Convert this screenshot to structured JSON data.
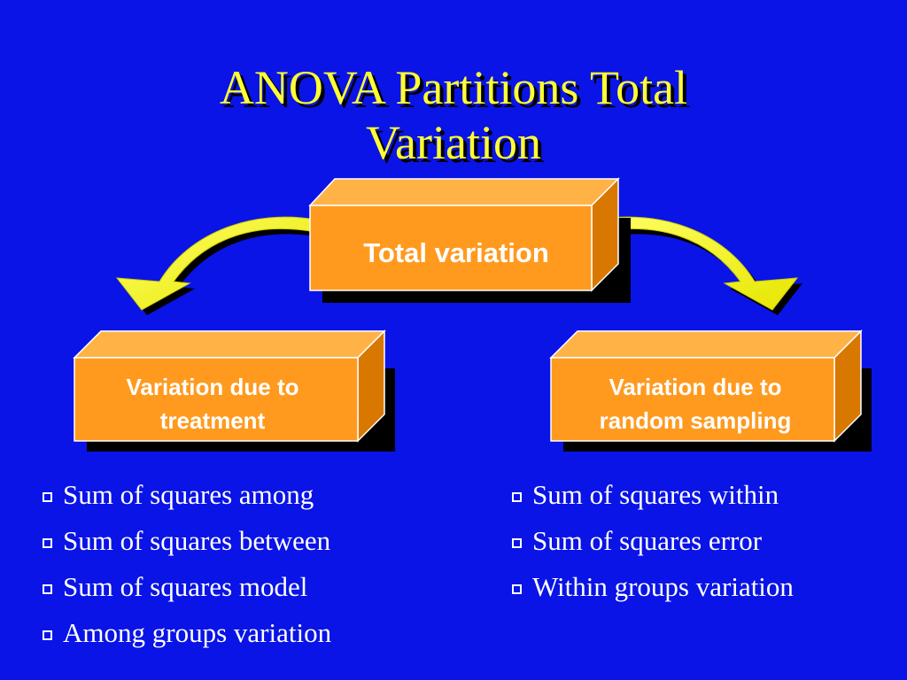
{
  "title": {
    "line1": "ANOVA Partitions Total",
    "line2": "Variation"
  },
  "diagram": {
    "total_box": "Total variation",
    "left_box": {
      "line1": "Variation due to",
      "line2": "treatment"
    },
    "right_box": {
      "line1": "Variation due to",
      "line2": "random sampling"
    }
  },
  "left_bullets": [
    "Sum of squares among",
    "Sum of squares between",
    "Sum of squares model",
    "Among groups variation"
  ],
  "right_bullets": [
    "Sum of squares within",
    "Sum of squares error",
    "Within groups variation"
  ],
  "colors": {
    "background": "#0a14e6",
    "title": "#ffff33",
    "box_front": "#ff9a1f",
    "box_top": "#ffb347",
    "box_side": "#d97800",
    "arrow": "#ffff00",
    "text": "#ffffff"
  },
  "icons": {
    "bullet": "hollow-square-bullet",
    "arrow": "curved-arrow"
  }
}
